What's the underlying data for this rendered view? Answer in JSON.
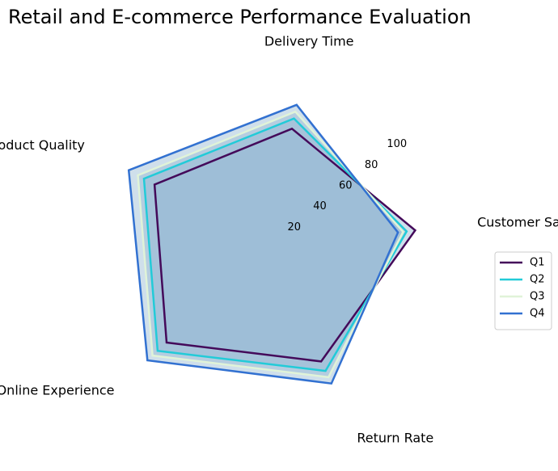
{
  "chart_data": {
    "type": "radar",
    "title": "Retail and E-commerce Performance Evaluation",
    "axes": [
      "Customer Satisfaction",
      "Delivery Time",
      "Product Quality",
      "Online Experience",
      "Return Rate"
    ],
    "rlim": [
      0,
      100
    ],
    "rticks": [
      20,
      40,
      60,
      80,
      100
    ],
    "series": [
      {
        "name": "Q1",
        "values": [
          85,
          70,
          75,
          80,
          72
        ],
        "color": "#440a5a"
      },
      {
        "name": "Q2",
        "values": [
          80,
          76,
          82,
          87,
          78
        ],
        "color": "#22cbd8"
      },
      {
        "name": "Q3",
        "values": [
          78,
          80,
          86,
          91,
          82
        ],
        "color": "#e0f3d8"
      },
      {
        "name": "Q4",
        "values": [
          75,
          84,
          92,
          95,
          86
        ],
        "color": "#3271d1"
      }
    ],
    "fill_color": "#94b8d3",
    "grid": false,
    "legend_position": "right"
  }
}
